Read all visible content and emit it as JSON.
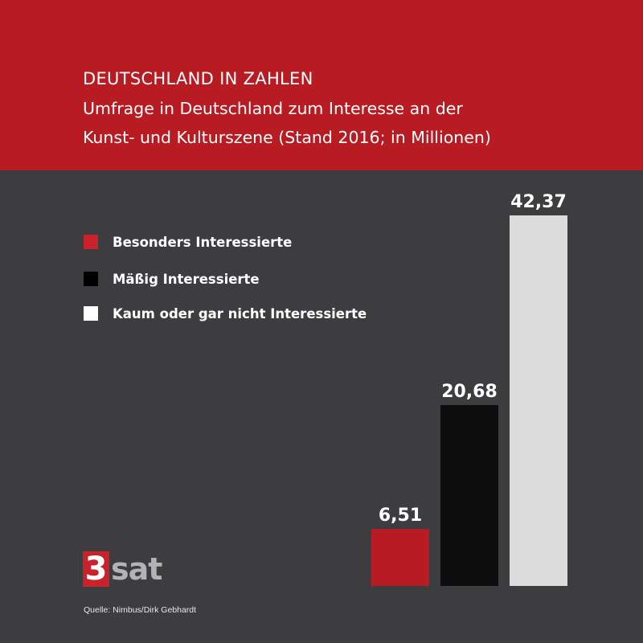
{
  "header": {
    "title": "DEUTSCHLAND IN ZAHLEN",
    "subtitle_line1": "Umfrage in Deutschland zum Interesse an der",
    "subtitle_line2": "Kunst- und Kulturszene (Stand 2016; in Millionen)"
  },
  "colors": {
    "header_bg": "#b81c22",
    "background": "#3d3d3f",
    "series_red": "#b81c22",
    "series_black": "#0d0d0d",
    "series_white": "#dcdcdc"
  },
  "legend": [
    {
      "label": "Besonders Interessierte",
      "color": "#c8232b",
      "icon": "red-square"
    },
    {
      "label": "Mäßig Interessierte",
      "color": "#000000",
      "icon": "black-square"
    },
    {
      "label": "Kaum oder gar nicht Interessierte",
      "color": "#ffffff",
      "icon": "white-square"
    }
  ],
  "chart_data": {
    "type": "bar",
    "categories": [
      "Besonders Interessierte",
      "Mäßig Interessierte",
      "Kaum oder gar nicht Interessierte"
    ],
    "values": [
      6.51,
      20.68,
      42.37
    ],
    "value_labels": [
      "6,51",
      "20,68",
      "42,37"
    ],
    "colors": [
      "#b81c22",
      "#0d0d0d",
      "#dcdcdc"
    ],
    "unit": "Millionen",
    "legend_position": "left",
    "grid": false
  },
  "logo": {
    "number": "3",
    "text": "sat"
  },
  "source": "Quelle: Nimbus/Dirk Gebhardt"
}
